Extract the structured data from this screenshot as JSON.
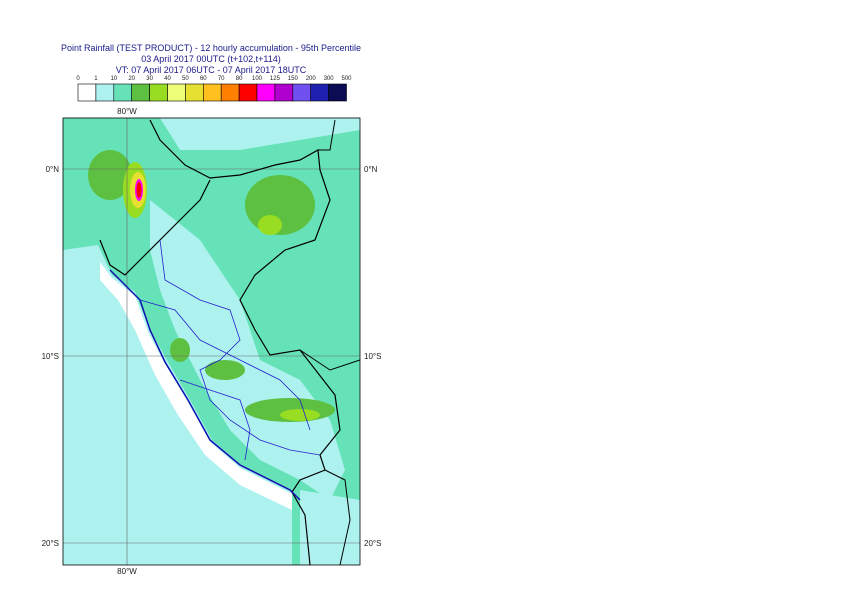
{
  "header": {
    "title": "Point Rainfall (TEST PRODUCT) - 12 hourly accumulation - 95th Percentile",
    "base": "03 April 2017 00UTC (t+102,t+114)",
    "valid": "VT: 07 April 2017 06UTC - 07 April 2017 18UTC"
  },
  "legend": {
    "thresholds": [
      0,
      1,
      10,
      20,
      30,
      40,
      50,
      60,
      70,
      80,
      100,
      125,
      150,
      200,
      300,
      500
    ],
    "colors": [
      "#ffffff",
      "#aef2f0",
      "#66e2b8",
      "#5ec040",
      "#99dd22",
      "#eeff77",
      "#e6e030",
      "#ffc020",
      "#ff8000",
      "#ff0000",
      "#ff00ff",
      "#b000d0",
      "#7050f0",
      "#2020b0",
      "#0c0c55"
    ]
  },
  "map": {
    "lon_labels_top": [
      "80°W"
    ],
    "lon_labels_bottom": [
      "80°W"
    ],
    "lat_labels_left": [
      "0°N",
      "10°S",
      "20°S"
    ],
    "lat_labels_right": [
      "0°N",
      "10°S",
      "20°S"
    ]
  }
}
